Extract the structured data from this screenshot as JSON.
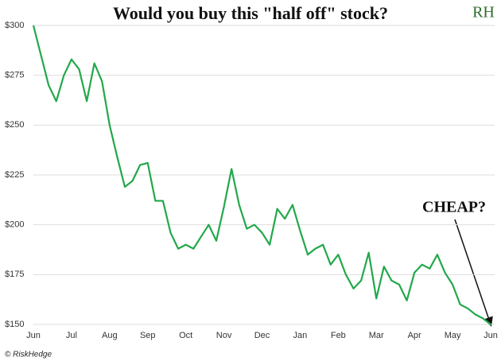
{
  "chart_data": {
    "type": "line",
    "title": "Would you buy this \"half off\" stock?",
    "annotation": "CHEAP?",
    "logo": "RH",
    "footer": "© RiskHedge",
    "series": [
      {
        "color": "#22a84a",
        "values": [
          300,
          285,
          270,
          262,
          275,
          283,
          278,
          262,
          281,
          272,
          250,
          234,
          219,
          222,
          230,
          231,
          212,
          212,
          196,
          188,
          190,
          188,
          194,
          200,
          192,
          209,
          228,
          210,
          198,
          200,
          196,
          190,
          208,
          203,
          210,
          197,
          185,
          188,
          190,
          180,
          185,
          175,
          168,
          172,
          186,
          163,
          179,
          172,
          170,
          162,
          176,
          180,
          178,
          185,
          176,
          170,
          160,
          158,
          155,
          153,
          150
        ]
      }
    ],
    "xlim": [
      0,
      60
    ],
    "xticks": [
      {
        "value": 0,
        "label": "Jun"
      },
      {
        "value": 5,
        "label": "Jul"
      },
      {
        "value": 10,
        "label": "Aug"
      },
      {
        "value": 15,
        "label": "Sep"
      },
      {
        "value": 20,
        "label": "Oct"
      },
      {
        "value": 25,
        "label": "Nov"
      },
      {
        "value": 30,
        "label": "Dec"
      },
      {
        "value": 35,
        "label": "Jan"
      },
      {
        "value": 40,
        "label": "Feb"
      },
      {
        "value": 45,
        "label": "Mar"
      },
      {
        "value": 50,
        "label": "Apr"
      },
      {
        "value": 55,
        "label": "May"
      },
      {
        "value": 60,
        "label": "Jun"
      }
    ],
    "ylim": [
      150,
      300
    ],
    "yticks": [
      {
        "value": 150,
        "label": "$150"
      },
      {
        "value": 175,
        "label": "$175"
      },
      {
        "value": 200,
        "label": "$200"
      },
      {
        "value": 225,
        "label": "$225"
      },
      {
        "value": 250,
        "label": "$250"
      },
      {
        "value": 275,
        "label": "$275"
      },
      {
        "value": 300,
        "label": "$300"
      }
    ],
    "grid": true
  }
}
